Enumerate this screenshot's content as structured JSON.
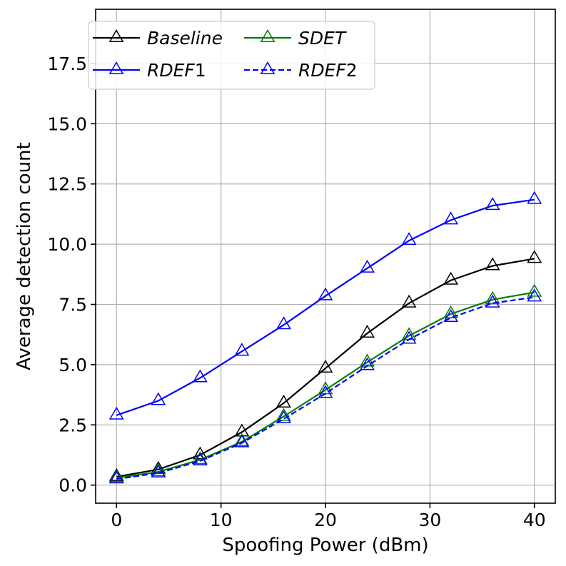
{
  "chart_data": {
    "type": "line",
    "title": "",
    "xlabel": "Spoofing Power (dBm)",
    "ylabel": "Average detection count",
    "xlim": [
      -2,
      42
    ],
    "ylim": [
      -0.75,
      19.75
    ],
    "xticks": [
      0,
      10,
      20,
      30,
      40
    ],
    "yticks": [
      0.0,
      2.5,
      5.0,
      7.5,
      10.0,
      12.5,
      15.0,
      17.5
    ],
    "grid": true,
    "legend_position": "top-left",
    "x": [
      0,
      4,
      8,
      12,
      16,
      20,
      24,
      28,
      32,
      36,
      40
    ],
    "series": [
      {
        "name": "Baseline",
        "name_parts": [
          "Baseline",
          ""
        ],
        "color": "#000000",
        "dash": "solid",
        "marker": "triangle-open",
        "values": [
          0.35,
          0.65,
          1.25,
          2.2,
          3.4,
          4.85,
          6.3,
          7.55,
          8.5,
          9.1,
          9.4
        ]
      },
      {
        "name": "SDET",
        "name_parts": [
          "SDET",
          ""
        ],
        "color": "#008000",
        "dash": "solid",
        "marker": "triangle-open",
        "values": [
          0.3,
          0.55,
          1.05,
          1.8,
          2.85,
          3.95,
          5.1,
          6.2,
          7.1,
          7.7,
          8.0
        ]
      },
      {
        "name": "RDEF1",
        "name_parts": [
          "RDEF",
          "1"
        ],
        "color": "#0000ff",
        "dash": "solid",
        "marker": "triangle-open",
        "values": [
          2.9,
          3.5,
          4.45,
          5.55,
          6.65,
          7.85,
          9.0,
          10.15,
          11.0,
          11.6,
          11.85
        ]
      },
      {
        "name": "RDEF2",
        "name_parts": [
          "RDEF",
          "2"
        ],
        "color": "#0000ff",
        "dash": "dashed",
        "marker": "triangle-open",
        "values": [
          0.25,
          0.5,
          1.0,
          1.75,
          2.75,
          3.8,
          4.95,
          6.05,
          6.95,
          7.55,
          7.8
        ]
      }
    ]
  }
}
